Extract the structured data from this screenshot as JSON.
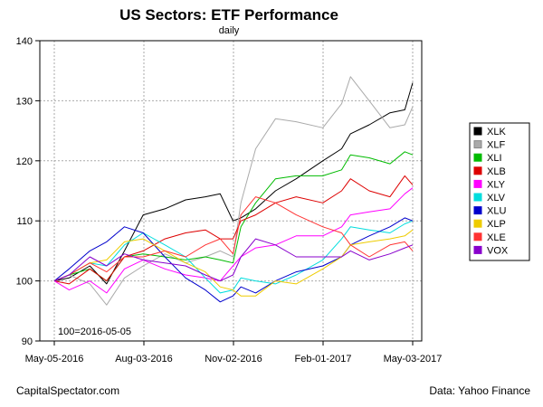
{
  "footer": {
    "source_left": "CapitalSpectator.com",
    "source_right": "Data: Yahoo Finance"
  },
  "chart_data": {
    "type": "line",
    "title": "US Sectors: ETF Performance",
    "subtitle": "daily",
    "xlabel": "",
    "ylabel": "",
    "annotation": "100=2016-05-05",
    "x_ticks": [
      "May-05-2016",
      "Aug-03-2016",
      "Nov-02-2016",
      "Feb-01-2017",
      "May-03-2017"
    ],
    "ylim": [
      90,
      140
    ],
    "y_ticks": [
      90,
      100,
      110,
      120,
      130,
      140
    ],
    "grid": true,
    "legend_position": "right",
    "x": [
      "2016-05-05",
      "2016-05-20",
      "2016-06-10",
      "2016-06-27",
      "2016-07-15",
      "2016-08-03",
      "2016-08-25",
      "2016-09-15",
      "2016-10-05",
      "2016-10-20",
      "2016-11-02",
      "2016-11-10",
      "2016-11-25",
      "2016-12-15",
      "2017-01-05",
      "2017-02-01",
      "2017-02-20",
      "2017-03-01",
      "2017-03-20",
      "2017-04-10",
      "2017-04-25",
      "2017-05-03"
    ],
    "series": [
      {
        "name": "XLK",
        "color": "#000000",
        "values": [
          100,
          100.5,
          102.5,
          99.5,
          105,
          111,
          112,
          113.5,
          114,
          114.5,
          110,
          110.5,
          112,
          115,
          117,
          120,
          122,
          124.5,
          126,
          128,
          128.5,
          133
        ]
      },
      {
        "name": "XLF",
        "color": "#aaaaaa",
        "values": [
          100,
          101,
          99.5,
          96,
          100.5,
          102.5,
          104.5,
          103,
          104,
          105,
          104,
          113,
          122,
          127,
          126.5,
          125.5,
          129.5,
          134,
          130,
          125.5,
          126,
          129
        ]
      },
      {
        "name": "XLI",
        "color": "#00bb00",
        "values": [
          100,
          101,
          102,
          100,
          104,
          104.5,
          104,
          103.5,
          104,
          103.5,
          103,
          109,
          113,
          117,
          117.5,
          117.5,
          118.5,
          121,
          120.5,
          119.5,
          121.5,
          121
        ]
      },
      {
        "name": "XLB",
        "color": "#dd0000",
        "values": [
          100,
          99.5,
          102,
          100,
          104,
          105,
          107,
          108,
          108.5,
          107,
          107,
          110,
          111,
          113,
          114,
          113,
          115,
          117,
          115,
          114,
          117.5,
          116
        ]
      },
      {
        "name": "XLY",
        "color": "#ff00ff",
        "values": [
          100,
          98.5,
          100,
          98,
          102,
          103.5,
          102,
          101,
          100.5,
          100,
          102.5,
          104,
          105.5,
          106,
          107.5,
          107.5,
          109,
          111,
          111.5,
          112,
          114.5,
          115.5
        ]
      },
      {
        "name": "XLV",
        "color": "#00dddd",
        "values": [
          100,
          101,
          103,
          102.5,
          106,
          108,
          106,
          104,
          100.5,
          98,
          98.5,
          100.5,
          100,
          99.5,
          101,
          103.5,
          107,
          109,
          108.5,
          108,
          109.5,
          110
        ]
      },
      {
        "name": "XLU",
        "color": "#0000cc",
        "values": [
          100,
          102,
          105,
          106.5,
          109,
          108,
          104,
          100.5,
          98.5,
          96.5,
          97.5,
          99,
          98,
          100,
          101.5,
          102.5,
          104,
          106,
          107.5,
          109,
          110.5,
          110
        ]
      },
      {
        "name": "XLP",
        "color": "#eecc00",
        "values": [
          100,
          101,
          103,
          103.5,
          106.5,
          107,
          105,
          103,
          101.5,
          99,
          98.5,
          97.5,
          97.5,
          100,
          99.5,
          102,
          104,
          106,
          106.5,
          107,
          107.5,
          108.5
        ]
      },
      {
        "name": "XLE",
        "color": "#ff3333",
        "values": [
          100,
          101,
          103,
          101.5,
          104,
          104,
          105,
          104,
          106,
          107,
          104.5,
          111,
          114,
          113,
          111,
          109,
          108,
          106,
          104,
          106,
          106.5,
          105
        ]
      },
      {
        "name": "VOX",
        "color": "#8800cc",
        "values": [
          100,
          101,
          104,
          102.5,
          104.5,
          103.5,
          103,
          102.5,
          101,
          100,
          101,
          104,
          107,
          106,
          104,
          104,
          104,
          105,
          103.5,
          104.5,
          105.5,
          106
        ]
      }
    ]
  }
}
